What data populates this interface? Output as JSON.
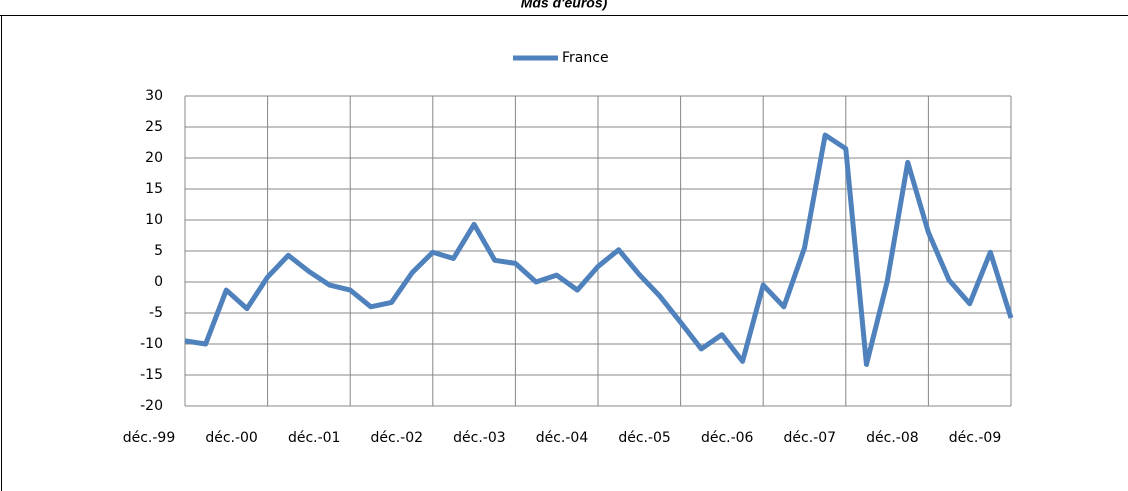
{
  "chart_data": {
    "type": "line",
    "title": "Mds d'euros)",
    "categories": [
      "déc.-99",
      null,
      null,
      null,
      "déc.-00",
      null,
      null,
      null,
      "déc.-01",
      null,
      null,
      null,
      "déc.-02",
      null,
      null,
      null,
      "déc.-03",
      null,
      null,
      null,
      "déc.-04",
      null,
      null,
      null,
      "déc.-05",
      null,
      null,
      null,
      "déc.-06",
      null,
      null,
      null,
      "déc.-07",
      null,
      null,
      null,
      "déc.-08",
      null,
      null,
      null,
      "déc.-09"
    ],
    "series": [
      {
        "name": "France",
        "color": "#4f81bd",
        "values": [
          -9.5,
          -10,
          -1.3,
          -4.3,
          0.8,
          4.3,
          1.7,
          -0.5,
          -1.3,
          -4,
          -3.3,
          1.5,
          4.8,
          3.8,
          9.3,
          3.5,
          3,
          0,
          1.1,
          -1.3,
          2.5,
          5.2,
          1.2,
          -2.3,
          -6.5,
          -10.8,
          -8.5,
          -12.8,
          -0.5,
          -4,
          5.5,
          23.7,
          21.5,
          -13.3,
          0,
          19.3,
          8,
          0.3,
          -3.5,
          4.8,
          -5.8
        ]
      }
    ],
    "ylim": [
      -20,
      30
    ],
    "yticks": [
      -20,
      -15,
      -10,
      -5,
      0,
      5,
      10,
      15,
      20,
      25,
      30
    ],
    "grid": true,
    "legend": "top"
  }
}
